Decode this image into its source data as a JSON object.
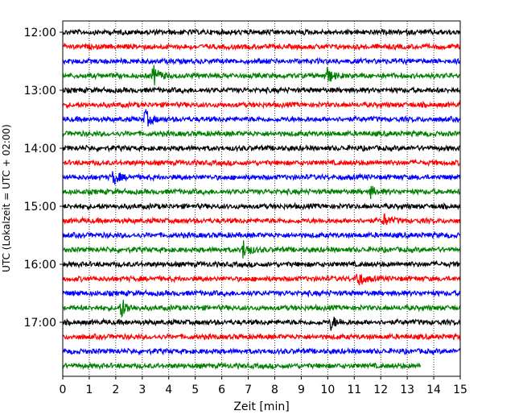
{
  "chart_data": {
    "type": "line",
    "subtype": "helicorder",
    "title": "",
    "xlabel": "Zeit  [min]",
    "ylabel": "UTC (Lokalzeit = UTC + 02:00)",
    "xlim": [
      0,
      15
    ],
    "x_ticks": [
      "0",
      "1",
      "2",
      "3",
      "4",
      "5",
      "6",
      "7",
      "8",
      "9",
      "10",
      "11",
      "12",
      "13",
      "14",
      "15"
    ],
    "grid": "vertical dotted",
    "trace_colors": [
      "#000000",
      "#ff0000",
      "#0000ff",
      "#008000"
    ],
    "y_tick_labels": [
      {
        "label": "12:00",
        "row": 0
      },
      {
        "label": "13:00",
        "row": 4
      },
      {
        "label": "14:00",
        "row": 8
      },
      {
        "label": "15:00",
        "row": 12
      },
      {
        "label": "16:00",
        "row": 16
      },
      {
        "label": "17:00",
        "row": 20
      }
    ],
    "row_minutes": 15,
    "rows": 24,
    "last_row_end_min": 13.5,
    "events": [
      {
        "row": 3,
        "t": 3.4,
        "amp": 1.0
      },
      {
        "row": 3,
        "t": 9.9,
        "amp": 1.0
      },
      {
        "row": 6,
        "t": 3.1,
        "amp": 0.9
      },
      {
        "row": 10,
        "t": 1.9,
        "amp": 0.7
      },
      {
        "row": 11,
        "t": 11.6,
        "amp": 0.5
      },
      {
        "row": 13,
        "t": 12.1,
        "amp": 0.6
      },
      {
        "row": 15,
        "t": 6.8,
        "amp": 0.9
      },
      {
        "row": 17,
        "t": 11.1,
        "amp": 0.8
      },
      {
        "row": 19,
        "t": 2.2,
        "amp": 1.0
      },
      {
        "row": 20,
        "t": 10.1,
        "amp": 0.7
      }
    ]
  }
}
